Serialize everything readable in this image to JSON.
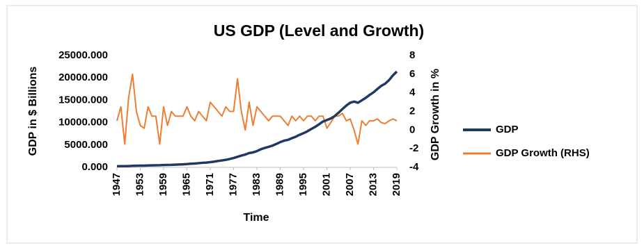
{
  "chart_data": {
    "type": "line",
    "title": "US GDP (Level and Growth)",
    "x_label": "Time",
    "y_label": "GDP in $ Billions",
    "y2_label": "GDP Growth  in %",
    "x": [
      1947,
      1948,
      1949,
      1950,
      1951,
      1952,
      1953,
      1954,
      1955,
      1956,
      1957,
      1958,
      1959,
      1960,
      1961,
      1962,
      1963,
      1964,
      1965,
      1966,
      1967,
      1968,
      1969,
      1970,
      1971,
      1972,
      1973,
      1974,
      1975,
      1976,
      1977,
      1978,
      1979,
      1980,
      1981,
      1982,
      1983,
      1984,
      1985,
      1986,
      1987,
      1988,
      1989,
      1990,
      1991,
      1992,
      1993,
      1994,
      1995,
      1996,
      1997,
      1998,
      1999,
      2000,
      2001,
      2002,
      2003,
      2004,
      2005,
      2006,
      2007,
      2008,
      2009,
      2010,
      2011,
      2012,
      2013,
      2014,
      2015,
      2016,
      2017,
      2018,
      2019
    ],
    "series": [
      {
        "name": "GDP",
        "color": "#1f3864",
        "axis": "y",
        "values": [
          249,
          274,
          272,
          300,
          347,
          367,
          389,
          391,
          426,
          449,
          474,
          482,
          522,
          543,
          563,
          605,
          638,
          686,
          744,
          815,
          862,
          943,
          1019,
          1073,
          1165,
          1280,
          1425,
          1545,
          1684,
          1873,
          2082,
          2352,
          2627,
          2857,
          3207,
          3343,
          3634,
          4037,
          4339,
          4580,
          4855,
          5236,
          5642,
          5963,
          6158,
          6520,
          6859,
          7287,
          7640,
          8073,
          8578,
          9063,
          9631,
          10252,
          10582,
          10936,
          11458,
          12214,
          13037,
          13815,
          14452,
          14713,
          14449,
          14992,
          15543,
          16197,
          16785,
          17527,
          18225,
          18715,
          19519,
          20580,
          21428
        ]
      },
      {
        "name": "GDP Growth (RHS)",
        "color": "#ed7d31",
        "axis": "y2",
        "values": [
          1,
          2.5,
          -1.5,
          3.5,
          6,
          2,
          0.5,
          0.2,
          2.5,
          1.5,
          1.5,
          -1.5,
          2.5,
          0.5,
          2,
          1.5,
          1.5,
          1.5,
          2.5,
          1.5,
          1,
          2,
          1.5,
          1,
          3,
          2.5,
          2,
          1.5,
          2.5,
          2,
          2,
          5.5,
          2,
          0,
          3,
          0.5,
          2.5,
          2,
          1.5,
          1,
          1.5,
          1.5,
          1.5,
          1,
          0.5,
          1.5,
          1,
          1.5,
          1,
          1.5,
          1.5,
          1,
          1.5,
          1.5,
          0.2,
          0.8,
          1.5,
          1.5,
          1.8,
          1,
          1.2,
          0,
          -1.5,
          1,
          0.5,
          1,
          1,
          1.2,
          0.8,
          0.7,
          1,
          1.2,
          1
        ]
      }
    ],
    "xlim": [
      1947,
      2019
    ],
    "xticks": [
      1947,
      1953,
      1959,
      1965,
      1971,
      1977,
      1983,
      1989,
      1995,
      2001,
      2007,
      2013,
      2019
    ],
    "ylim": [
      0,
      25000
    ],
    "yticks": [
      {
        "value": 0,
        "label": "0.000"
      },
      {
        "value": 5000,
        "label": "5000.000"
      },
      {
        "value": 10000,
        "label": "10000.000"
      },
      {
        "value": 15000,
        "label": "15000.000"
      },
      {
        "value": 20000,
        "label": "20000.000"
      },
      {
        "value": 25000,
        "label": "25000.000"
      }
    ],
    "y2lim": [
      -4,
      8
    ],
    "y2ticks": [
      -4,
      -2,
      0,
      2,
      4,
      6,
      8
    ],
    "grid": false,
    "legend": "right"
  }
}
